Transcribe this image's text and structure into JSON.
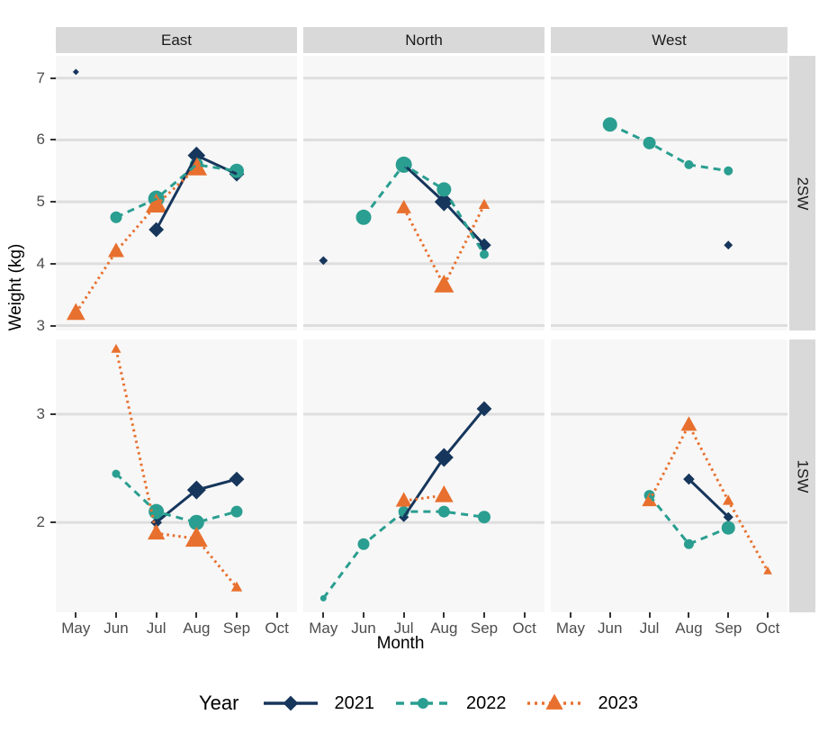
{
  "colors": {
    "navy": "#16365C",
    "teal": "#2A9E90",
    "orange": "#E8702E",
    "strip_bg": "#D9D9D9",
    "panel_bg": "#F7F7F7",
    "gridline": "#DEDEDE",
    "axis_text": "#4D4D4D",
    "tick_mark": "#333333"
  },
  "legend": {
    "title": "Year"
  },
  "chart_data": {
    "type": "line",
    "title": "",
    "xlabel": "Month",
    "ylabel": "Weight (kg)",
    "facet_columns": [
      "East",
      "North",
      "West"
    ],
    "facet_rows": [
      "2SW",
      "1SW"
    ],
    "x_categories": [
      "May",
      "Jun",
      "Jul",
      "Aug",
      "Sep",
      "Oct"
    ],
    "row_scales": [
      {
        "row": "2SW",
        "ylim": [
          2.92,
          7.36
        ],
        "yticks": [
          7,
          6,
          5,
          4,
          3
        ]
      },
      {
        "row": "1SW",
        "ylim": [
          1.17,
          3.69
        ],
        "yticks": [
          3,
          2
        ]
      }
    ],
    "grid": "horizontal-major-only",
    "legend_position": "bottom",
    "point_size_note": "marker size varies with sample size; s = approx marker diameter px",
    "series_styles": [
      {
        "name": "2021",
        "color": "#16365C",
        "marker": "diamond",
        "linestyle": "solid"
      },
      {
        "name": "2022",
        "color": "#2A9E90",
        "marker": "circle",
        "linestyle": "dashed"
      },
      {
        "name": "2023",
        "color": "#E8702E",
        "marker": "triangle",
        "linestyle": "dotted"
      }
    ],
    "facets": [
      {
        "row": "2SW",
        "col": "East",
        "series": [
          {
            "year": "2021",
            "points": [
              {
                "m": "May",
                "v": 7.1,
                "s": 5,
                "line": false
              },
              {
                "m": "Jul",
                "v": 4.55,
                "s": 12
              },
              {
                "m": "Aug",
                "v": 5.75,
                "s": 14
              },
              {
                "m": "Sep",
                "v": 5.45,
                "s": 12
              }
            ]
          },
          {
            "year": "2022",
            "points": [
              {
                "m": "Jun",
                "v": 4.75,
                "s": 13
              },
              {
                "m": "Jul",
                "v": 5.05,
                "s": 18
              },
              {
                "m": "Aug",
                "v": 5.6,
                "s": 15
              },
              {
                "m": "Sep",
                "v": 5.5,
                "s": 16
              }
            ]
          },
          {
            "year": "2023",
            "points": [
              {
                "m": "May",
                "v": 3.2,
                "s": 15
              },
              {
                "m": "Jun",
                "v": 4.2,
                "s": 13
              },
              {
                "m": "Jul",
                "v": 4.95,
                "s": 17
              },
              {
                "m": "Aug",
                "v": 5.55,
                "s": 17
              }
            ]
          }
        ]
      },
      {
        "row": "2SW",
        "col": "North",
        "series": [
          {
            "year": "2021",
            "points": [
              {
                "m": "May",
                "v": 4.05,
                "s": 7,
                "line": false
              },
              {
                "m": "Jul",
                "v": 5.6,
                "s": 8
              },
              {
                "m": "Aug",
                "v": 5.0,
                "s": 15
              },
              {
                "m": "Sep",
                "v": 4.3,
                "s": 11
              }
            ]
          },
          {
            "year": "2022",
            "points": [
              {
                "m": "Jun",
                "v": 4.75,
                "s": 17
              },
              {
                "m": "Jul",
                "v": 5.6,
                "s": 18
              },
              {
                "m": "Aug",
                "v": 5.2,
                "s": 16
              },
              {
                "m": "Sep",
                "v": 4.15,
                "s": 10
              }
            ]
          },
          {
            "year": "2023",
            "points": [
              {
                "m": "Jul",
                "v": 4.9,
                "s": 12
              },
              {
                "m": "Aug",
                "v": 3.65,
                "s": 16
              },
              {
                "m": "Sep",
                "v": 4.95,
                "s": 9
              }
            ]
          }
        ]
      },
      {
        "row": "2SW",
        "col": "West",
        "series": [
          {
            "year": "2021",
            "points": [
              {
                "m": "Sep",
                "v": 4.3,
                "s": 7,
                "line": false
              }
            ]
          },
          {
            "year": "2022",
            "points": [
              {
                "m": "Jun",
                "v": 6.25,
                "s": 16
              },
              {
                "m": "Jul",
                "v": 5.95,
                "s": 14
              },
              {
                "m": "Aug",
                "v": 5.6,
                "s": 10
              },
              {
                "m": "Sep",
                "v": 5.5,
                "s": 10
              }
            ]
          }
        ]
      },
      {
        "row": "1SW",
        "col": "East",
        "series": [
          {
            "year": "2021",
            "points": [
              {
                "m": "Jul",
                "v": 2.0,
                "s": 9
              },
              {
                "m": "Aug",
                "v": 2.3,
                "s": 15
              },
              {
                "m": "Sep",
                "v": 2.4,
                "s": 12
              }
            ]
          },
          {
            "year": "2022",
            "points": [
              {
                "m": "Jun",
                "v": 2.45,
                "s": 9
              },
              {
                "m": "Jul",
                "v": 2.1,
                "s": 17
              },
              {
                "m": "Aug",
                "v": 2.0,
                "s": 17
              },
              {
                "m": "Sep",
                "v": 2.1,
                "s": 13
              }
            ]
          },
          {
            "year": "2023",
            "points": [
              {
                "m": "Jun",
                "v": 3.6,
                "s": 8
              },
              {
                "m": "Jul",
                "v": 1.9,
                "s": 14
              },
              {
                "m": "Aug",
                "v": 1.85,
                "s": 18
              },
              {
                "m": "Sep",
                "v": 1.4,
                "s": 9
              }
            ]
          }
        ]
      },
      {
        "row": "1SW",
        "col": "North",
        "series": [
          {
            "year": "2021",
            "points": [
              {
                "m": "Jul",
                "v": 2.05,
                "s": 8
              },
              {
                "m": "Aug",
                "v": 2.6,
                "s": 15
              },
              {
                "m": "Sep",
                "v": 3.05,
                "s": 12
              }
            ]
          },
          {
            "year": "2022",
            "points": [
              {
                "m": "May",
                "v": 1.3,
                "s": 7
              },
              {
                "m": "Jun",
                "v": 1.8,
                "s": 13
              },
              {
                "m": "Jul",
                "v": 2.1,
                "s": 12
              },
              {
                "m": "Aug",
                "v": 2.1,
                "s": 13
              },
              {
                "m": "Sep",
                "v": 2.05,
                "s": 14
              }
            ]
          },
          {
            "year": "2023",
            "points": [
              {
                "m": "Jul",
                "v": 2.2,
                "s": 13
              },
              {
                "m": "Aug",
                "v": 2.25,
                "s": 15
              }
            ]
          }
        ]
      },
      {
        "row": "1SW",
        "col": "West",
        "series": [
          {
            "year": "2021",
            "points": [
              {
                "m": "Aug",
                "v": 2.4,
                "s": 9
              },
              {
                "m": "Sep",
                "v": 2.05,
                "s": 8
              }
            ]
          },
          {
            "year": "2022",
            "points": [
              {
                "m": "Jul",
                "v": 2.25,
                "s": 12
              },
              {
                "m": "Aug",
                "v": 1.8,
                "s": 11
              },
              {
                "m": "Sep",
                "v": 1.95,
                "s": 15
              }
            ]
          },
          {
            "year": "2023",
            "points": [
              {
                "m": "Jul",
                "v": 2.2,
                "s": 12
              },
              {
                "m": "Aug",
                "v": 2.9,
                "s": 13
              },
              {
                "m": "Sep",
                "v": 2.2,
                "s": 9
              },
              {
                "m": "Oct",
                "v": 1.55,
                "s": 7
              }
            ]
          }
        ]
      }
    ]
  }
}
